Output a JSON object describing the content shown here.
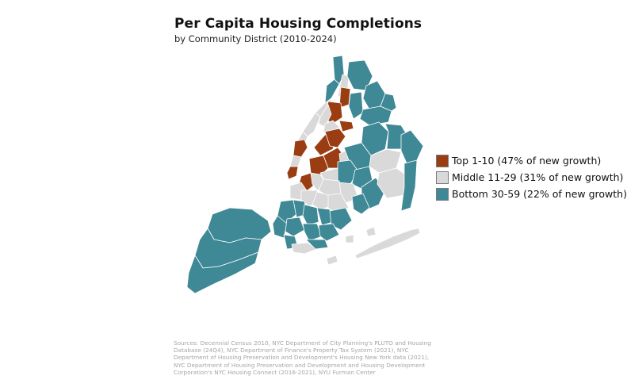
{
  "title": "Per Capita Housing Completions",
  "subtitle": "by Community District (2010-2024)",
  "colors": {
    "top": "#9a3d12",
    "middle": "#d9d9d9",
    "bottom": "#3f8896",
    "border": "#ffffff"
  },
  "legend": [
    {
      "key": "top",
      "label": "Top 1-10 (47% of new growth)"
    },
    {
      "key": "middle",
      "label": "Middle 11-29 (31% of new growth)"
    },
    {
      "key": "bottom",
      "label": "Bottom 30-59 (22% of new growth)"
    }
  ],
  "sources": "Sources: Decennial Census 2010, NYC Department of City Planning's PLUTO and Housing Database (24Q4), NYC Department of Finance's Property Tax System (2021), NYC Department of Housing Preservation and Development's Housing New York data (2021), NYC Department of Housing Preservation and Development and Housing Development Corporation's NYC Housing Connect (2016-2021), NYU Furman Center"
}
